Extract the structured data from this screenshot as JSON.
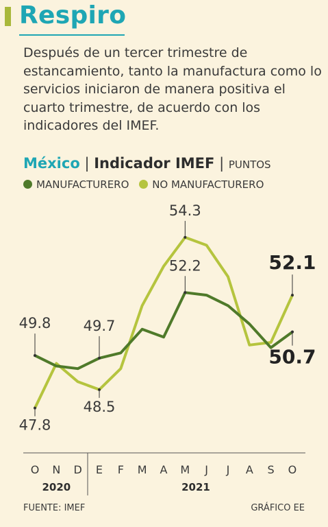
{
  "title": "Respiro",
  "intro": "Después de un tercer trimestre de estancamiento, tanto la manufactura como lo servicios iniciaron de manera positiva el cuarto trimestre, de acuerdo con los indicadores del IMEF.",
  "header": {
    "country": "México",
    "sep1": "|",
    "indicator": "Indicador IMEF",
    "sep2": "|",
    "units": "PUNTOS"
  },
  "colors": {
    "manufacturero": "#4f7a2a",
    "no_manufacturero": "#b5c43e",
    "accent": "#1ea6b4"
  },
  "footer": {
    "source": "FUENTE: IMEF",
    "credit": "GRÁFICO EE"
  },
  "chart_data": {
    "type": "line",
    "categories": [
      "O",
      "N",
      "D",
      "E",
      "F",
      "M",
      "A",
      "M",
      "J",
      "J",
      "A",
      "S",
      "O"
    ],
    "year_groups": [
      {
        "label": "2020",
        "start": 0,
        "end": 2
      },
      {
        "label": "2021",
        "start": 3,
        "end": 12
      }
    ],
    "ylim": [
      46.3,
      55.5
    ],
    "series": [
      {
        "name": "MANUFACTURERO",
        "color": "#4f7a2a",
        "values": [
          49.8,
          49.4,
          49.3,
          49.7,
          49.9,
          50.8,
          50.5,
          52.2,
          52.1,
          51.7,
          51.0,
          50.1,
          50.7
        ]
      },
      {
        "name": "NO MANUFACTURERO",
        "color": "#b5c43e",
        "values": [
          47.8,
          49.5,
          48.8,
          48.5,
          49.3,
          51.7,
          53.2,
          54.3,
          54.0,
          52.8,
          50.2,
          50.3,
          52.1
        ]
      }
    ],
    "annotations": [
      {
        "series": 0,
        "index": 0,
        "text": "49.8",
        "bold": false
      },
      {
        "series": 0,
        "index": 3,
        "text": "49.7",
        "bold": false
      },
      {
        "series": 0,
        "index": 7,
        "text": "52.2",
        "bold": false
      },
      {
        "series": 0,
        "index": 12,
        "text": "50.7",
        "bold": true
      },
      {
        "series": 1,
        "index": 0,
        "text": "47.8",
        "bold": false
      },
      {
        "series": 1,
        "index": 3,
        "text": "48.5",
        "bold": false
      },
      {
        "series": 1,
        "index": 7,
        "text": "54.3",
        "bold": false
      },
      {
        "series": 1,
        "index": 12,
        "text": "52.1",
        "bold": true
      }
    ]
  }
}
